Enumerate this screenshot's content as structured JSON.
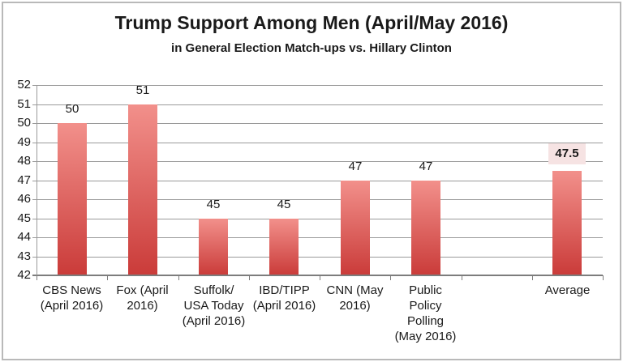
{
  "chart_data": {
    "type": "bar",
    "title": "Trump Support Among Men (April/May 2016)",
    "subtitle": "in General Election Match-ups vs. Hillary Clinton",
    "categories": [
      "CBS News (April 2016)",
      "Fox (April 2016)",
      "Suffolk/ USA Today (April 2016)",
      "IBD/TIPP (April 2016)",
      "CNN (May 2016)",
      "Public Policy Polling (May 2016)",
      "",
      "Average"
    ],
    "category_lines": [
      [
        "CBS News",
        "(April 2016)"
      ],
      [
        "Fox (April",
        "2016)"
      ],
      [
        "Suffolk/",
        "USA Today",
        "(April 2016)"
      ],
      [
        "IBD/TIPP",
        "(April 2016)"
      ],
      [
        "CNN (May",
        "2016)"
      ],
      [
        "Public",
        "Policy",
        "Polling",
        "(May 2016)"
      ],
      [],
      [
        "Average"
      ]
    ],
    "values": [
      50,
      51,
      45,
      45,
      47,
      47,
      null,
      47.5
    ],
    "data_labels": [
      "50",
      "51",
      "45",
      "45",
      "47",
      "47",
      null,
      "47.5"
    ],
    "highlighted_index": 7,
    "xlabel": "",
    "ylabel": "",
    "ylim": [
      42,
      52
    ],
    "yticks": [
      42,
      43,
      44,
      45,
      46,
      47,
      48,
      49,
      50,
      51,
      52
    ],
    "grid": true,
    "legend": "none",
    "colors": {
      "bar_gradient_top": "#f2908b",
      "bar_gradient_bottom": "#ca3b39",
      "highlight_label_bg": "#f6e3e3",
      "gridline": "#9a9a9a",
      "axis": "#7d7d7d",
      "text": "#1a1a1a",
      "frame_border": "#b9b9b9"
    }
  }
}
